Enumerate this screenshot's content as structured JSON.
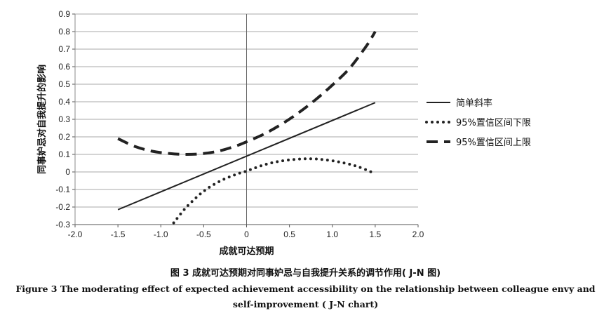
{
  "chart_data": {
    "type": "line",
    "xlabel": "成就可达预期",
    "ylabel": "同事妒忌对自我提升的影响",
    "xlim": [
      -2.0,
      2.0
    ],
    "ylim": [
      -0.3,
      0.9
    ],
    "xticks": [
      "-2.0",
      "-1.5",
      "-1.0",
      "-0.5",
      "0",
      "0.5",
      "1.0",
      "1.5",
      "2.0"
    ],
    "yticks": [
      "-0.3",
      "-0.2",
      "-0.1",
      "0",
      "0.1",
      "0.2",
      "0.3",
      "0.4",
      "0.5",
      "0.6",
      "0.7",
      "0.8",
      "0.9"
    ],
    "grid": "horizontal",
    "legend_position": "right",
    "series": [
      {
        "name": "简单斜率",
        "style": "solid",
        "x": [
          -1.5,
          1.5
        ],
        "y": [
          -0.215,
          0.395
        ]
      },
      {
        "name": "95%置信区间下限",
        "style": "dotted",
        "x": [
          -0.85,
          -0.7,
          -0.5,
          -0.3,
          -0.1,
          0.0,
          0.2,
          0.4,
          0.6,
          0.75,
          0.9,
          1.1,
          1.3,
          1.5
        ],
        "y": [
          -0.29,
          -0.2,
          -0.11,
          -0.05,
          -0.01,
          0.005,
          0.04,
          0.062,
          0.073,
          0.075,
          0.07,
          0.055,
          0.03,
          -0.01
        ]
      },
      {
        "name": "95%置信区间上限",
        "style": "dashed",
        "x": [
          -1.5,
          -1.3,
          -1.1,
          -0.9,
          -0.7,
          -0.5,
          -0.3,
          -0.1,
          0.0,
          0.2,
          0.4,
          0.6,
          0.8,
          1.0,
          1.2,
          1.4,
          1.5
        ],
        "y": [
          0.19,
          0.145,
          0.118,
          0.105,
          0.1,
          0.105,
          0.122,
          0.152,
          0.172,
          0.215,
          0.27,
          0.335,
          0.41,
          0.495,
          0.59,
          0.72,
          0.8
        ]
      }
    ]
  },
  "caption": {
    "cn": "图 3  成就可达预期对同事妒忌与自我提升关系的调节作用( J-N 图)",
    "en_line1": "Figure 3  The moderating effect of expected achievement accessibility on the relationship between colleague envy and",
    "en_line2": "self-improvement ( J-N chart)"
  },
  "colors": {
    "line": "#222222",
    "grid": "#aaaaaa"
  }
}
